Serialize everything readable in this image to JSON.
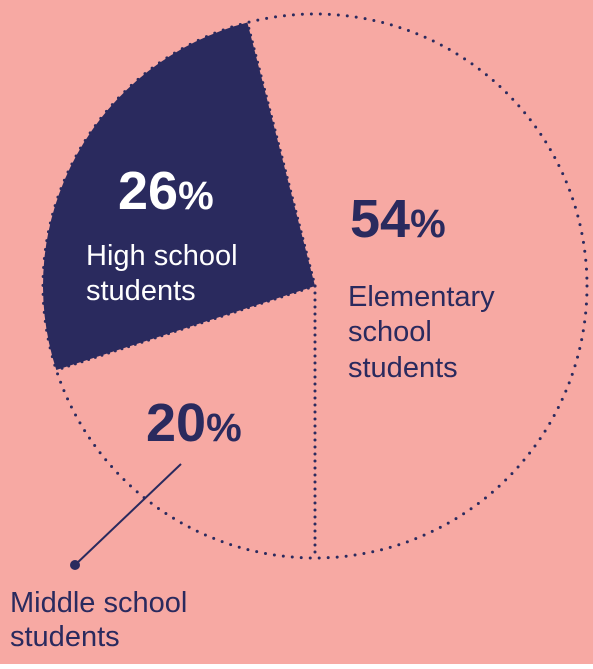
{
  "colors": {
    "background": "#F7A9A3",
    "highlight": "#2A2A5E",
    "text_on_highlight": "#FFFFFF"
  },
  "chart_data": {
    "type": "pie",
    "values": [
      54,
      26,
      20
    ],
    "unit": "%",
    "labels": [
      {
        "number": "54",
        "sign": "%",
        "lines": [
          "Elementary",
          "school",
          "students"
        ]
      },
      {
        "number": "26",
        "sign": "%",
        "lines": [
          "High school",
          "students"
        ]
      },
      {
        "number": "20",
        "sign": "%",
        "lines": [
          "Middle school",
          "students"
        ]
      }
    ],
    "highlighted_index": 1,
    "style": "dotted-outline-with-one-filled-slice"
  }
}
